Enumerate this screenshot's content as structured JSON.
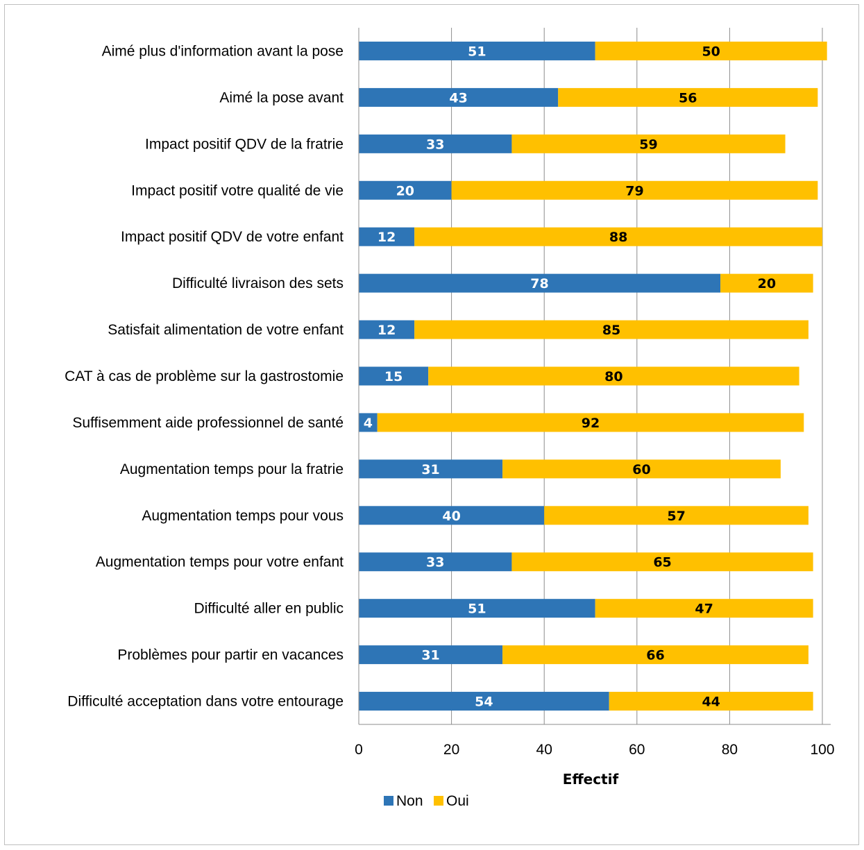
{
  "chart_data": {
    "type": "bar",
    "orientation": "horizontal",
    "stacked": true,
    "categories": [
      "Aimé plus d'information avant la pose",
      "Aimé la pose avant",
      "Impact positif QDV de la fratrie",
      "Impact positif votre qualité de vie",
      "Impact positif QDV de votre enfant",
      "Difficulté livraison des sets",
      "Satisfait alimentation de votre enfant",
      "CAT à cas de problème sur la gastrostomie",
      "Suffisemment aide professionnel de santé",
      "Augmentation temps pour la fratrie",
      "Augmentation temps pour vous",
      "Augmentation temps pour votre enfant",
      "Difficulté aller en public",
      "Problèmes pour partir en vacances",
      "Difficulté acceptation dans votre entourage"
    ],
    "series": [
      {
        "name": "Non",
        "color": "#2e75b6",
        "label_color": "#ffffff",
        "values": [
          51,
          43,
          33,
          20,
          12,
          78,
          12,
          15,
          4,
          31,
          40,
          33,
          51,
          31,
          54
        ]
      },
      {
        "name": "Oui",
        "color": "#ffc000",
        "label_color": "#000000",
        "values": [
          50,
          56,
          59,
          79,
          88,
          20,
          85,
          80,
          92,
          60,
          57,
          65,
          47,
          66,
          44
        ]
      }
    ],
    "xlabel": "Effectif",
    "xlim": [
      0,
      100
    ],
    "xticks": [
      "0",
      "20",
      "40",
      "60",
      "80",
      "100"
    ],
    "grid": true,
    "legend_position": "bottom"
  }
}
